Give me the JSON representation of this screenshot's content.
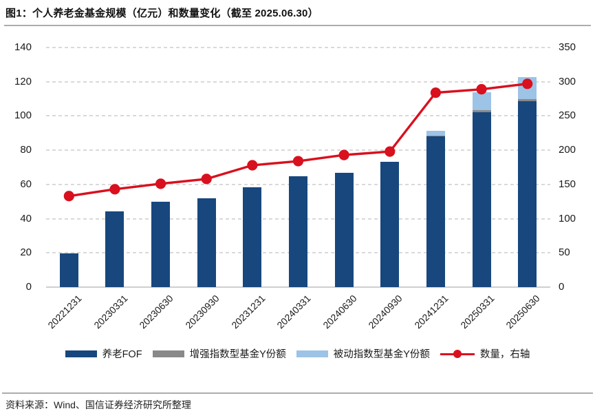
{
  "title": "图1：个人养老金基金规模（亿元）和数量变化（截至 2025.06.30）",
  "source": "资料来源：Wind、国信证券经济研究所整理",
  "colors": {
    "fof_bar": "#17477D",
    "enhanced_bar": "#898989",
    "passive_bar": "#9DC3E6",
    "quantity_line": "#D9101E",
    "gridline": "#D9D9D9",
    "axis_line": "#CFCFCF",
    "text": "#1A1A1A"
  },
  "chart_data": {
    "type": "bar",
    "subtype": "stacked bars (left axis) + line with markers (right axis)",
    "title": "个人养老金基金规模（亿元）和数量变化（截至 2025.06.30）",
    "categories": [
      "20221231",
      "20230331",
      "20230630",
      "20230930",
      "20231231",
      "20240331",
      "20240630",
      "20240930",
      "20241231",
      "20250331",
      "20250630"
    ],
    "series": [
      {
        "name": "养老FOF",
        "type": "bar",
        "stack": "scale",
        "axis": "left",
        "color": "#17477D",
        "values": [
          19.8,
          44.1,
          49.8,
          51.8,
          58.3,
          64.9,
          66.9,
          73.4,
          88.0,
          102.0,
          108.5
        ]
      },
      {
        "name": "增强指数型基金Y份额",
        "type": "bar",
        "stack": "scale",
        "axis": "left",
        "color": "#898989",
        "values": [
          0,
          0,
          0,
          0,
          0,
          0,
          0,
          0,
          0.6,
          1.3,
          1.4
        ]
      },
      {
        "name": "被动指数型基金Y份额",
        "type": "bar",
        "stack": "scale",
        "axis": "left",
        "color": "#9DC3E6",
        "values": [
          0,
          0,
          0,
          0,
          0,
          0,
          0,
          0,
          2.9,
          10.5,
          12.9
        ]
      },
      {
        "name": "数量，右轴",
        "type": "line",
        "axis": "right",
        "color": "#D9101E",
        "values": [
          133,
          143,
          151,
          158,
          178,
          184,
          193,
          198,
          284,
          289,
          297
        ]
      }
    ],
    "left_axis": {
      "min": 0,
      "max": 140,
      "step": 20,
      "ticks": [
        0,
        20,
        40,
        60,
        80,
        100,
        120,
        140
      ]
    },
    "right_axis": {
      "min": 0,
      "max": 350,
      "step": 50,
      "ticks": [
        0,
        50,
        100,
        150,
        200,
        250,
        300,
        350
      ]
    },
    "grid": "horizontal dashed",
    "legend_position": "bottom"
  },
  "legend": [
    {
      "label": "养老FOF",
      "swatch": "bar",
      "color": "#17477D"
    },
    {
      "label": "增强指数型基金Y份额",
      "swatch": "bar",
      "color": "#898989"
    },
    {
      "label": "被动指数型基金Y份额",
      "swatch": "bar",
      "color": "#9DC3E6"
    },
    {
      "label": "数量，右轴",
      "swatch": "line-dot",
      "color": "#D9101E"
    }
  ]
}
